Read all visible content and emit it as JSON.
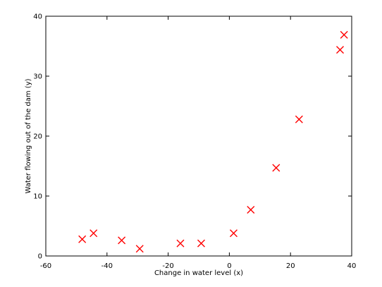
{
  "chart_data": {
    "type": "scatter",
    "title": "",
    "xlabel": "Change in water level (x)",
    "ylabel": "Water flowing out of the dam (y)",
    "xlim": [
      -60,
      40
    ],
    "ylim": [
      0,
      40
    ],
    "xticks": [
      -60,
      -40,
      -20,
      0,
      20,
      40
    ],
    "yticks": [
      0,
      10,
      20,
      30,
      40
    ],
    "grid": false,
    "legend": "none",
    "marker": "x",
    "marker_color": "#ff0000",
    "series": [
      {
        "x": [
          -48.1,
          -44.4,
          -35.2,
          -29.3,
          -16.0,
          -9.2,
          1.4,
          7.0,
          15.3,
          22.8,
          36.2,
          37.5
        ],
        "y": [
          2.8,
          3.8,
          2.6,
          1.2,
          2.1,
          2.1,
          3.8,
          7.7,
          14.7,
          22.8,
          34.4,
          36.9
        ]
      }
    ]
  }
}
